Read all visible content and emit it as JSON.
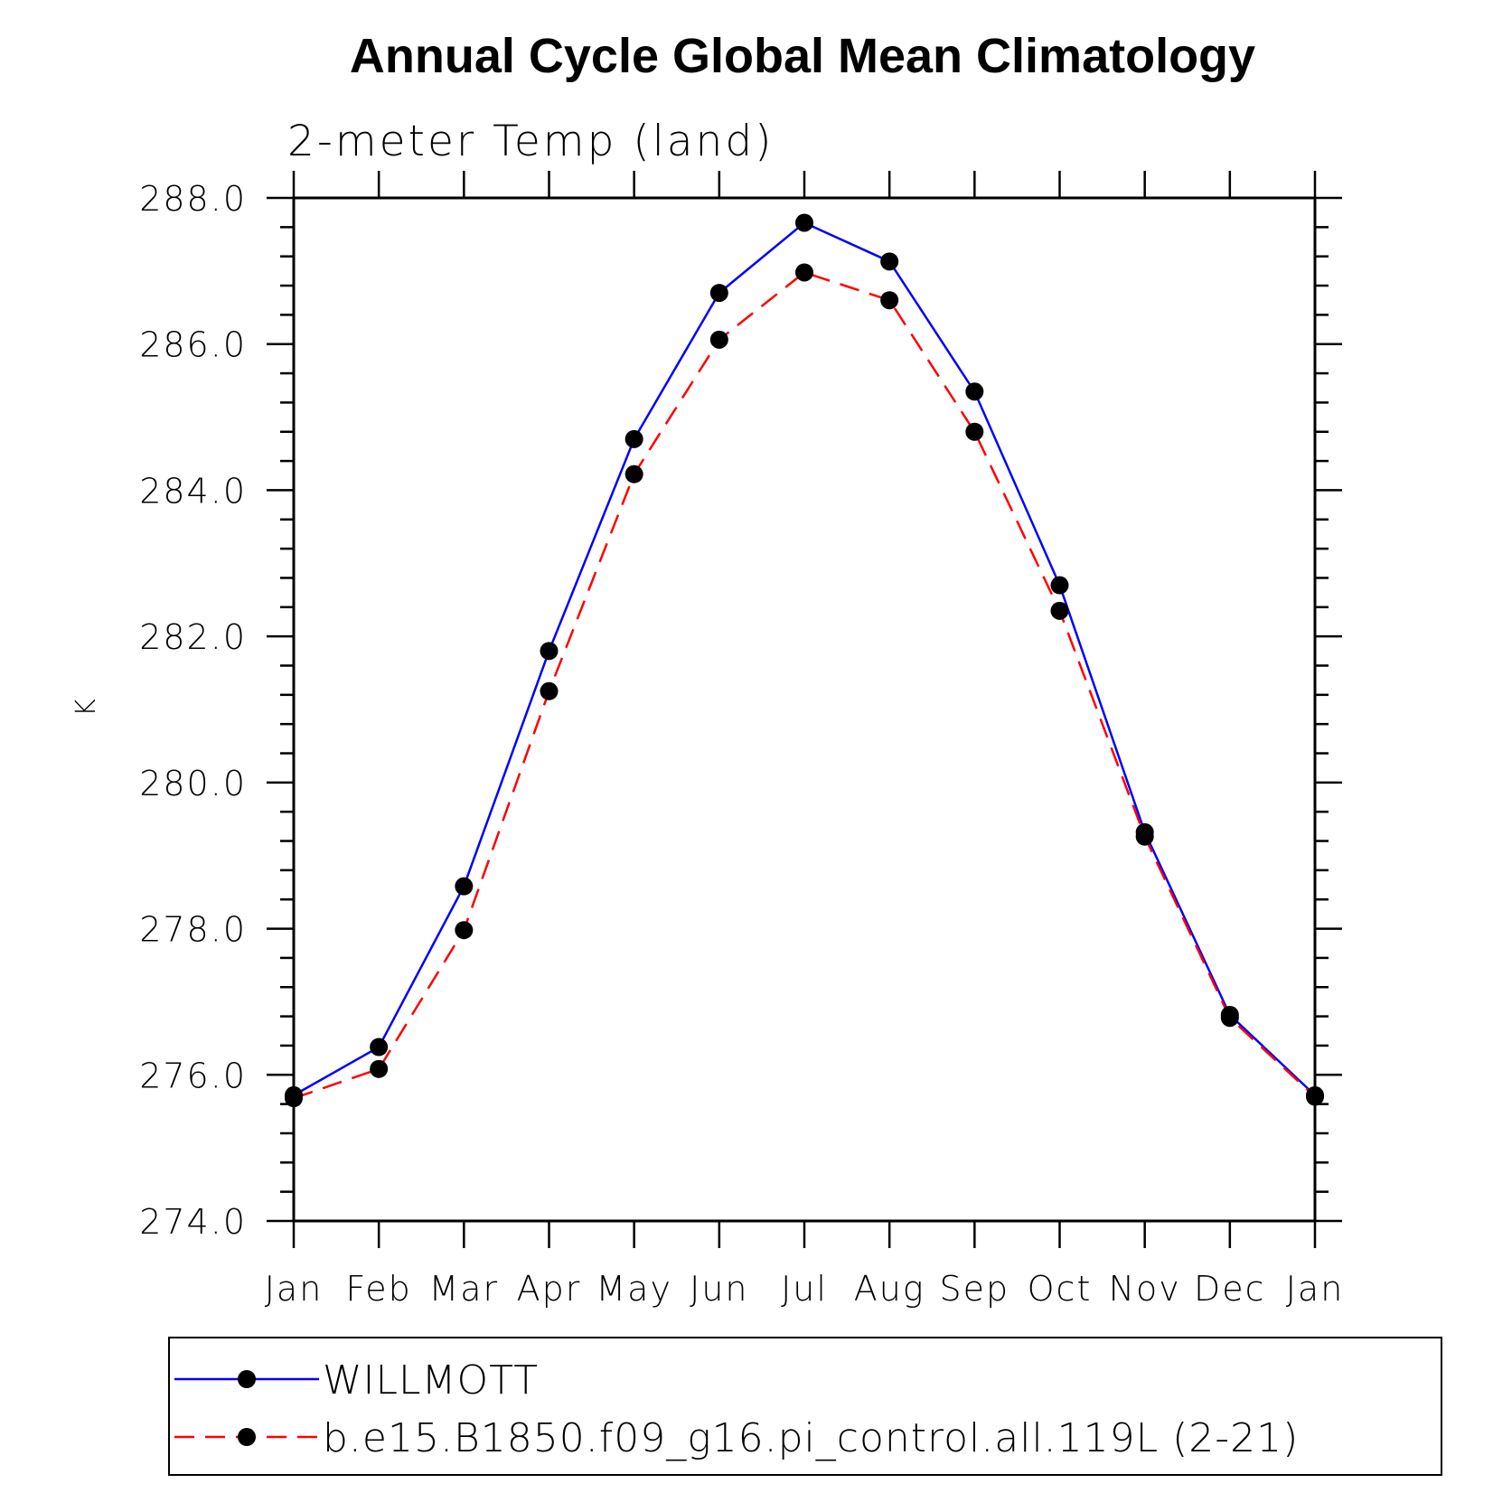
{
  "chart_data": {
    "type": "line",
    "title": "Annual Cycle Global Mean Climatology",
    "subtitle": "2-meter Temp (land)",
    "ylabel": "K",
    "xlabel": "",
    "categories": [
      "Jan",
      "Feb",
      "Mar",
      "Apr",
      "May",
      "Jun",
      "Jul",
      "Aug",
      "Sep",
      "Oct",
      "Nov",
      "Dec",
      "Jan"
    ],
    "ylim": [
      274.0,
      288.0
    ],
    "yticks": [
      "274.0",
      "276.0",
      "278.0",
      "280.0",
      "282.0",
      "284.0",
      "286.0",
      "288.0"
    ],
    "grid": false,
    "legend_position": "bottom",
    "series": [
      {
        "name": "WILLMOTT",
        "color": "#0000ff",
        "line_style": "solid",
        "marker": "filled-circle",
        "values": [
          275.72,
          276.38,
          278.58,
          281.8,
          284.7,
          286.7,
          287.66,
          287.13,
          285.35,
          282.7,
          279.32,
          276.82,
          275.72
        ]
      },
      {
        "name": "b.e15.B1850.f09_g16.pi_control.all.119L (2-21)",
        "color": "#ff0000",
        "line_style": "dashed",
        "marker": "filled-circle",
        "values": [
          275.68,
          276.08,
          277.98,
          281.25,
          284.22,
          286.06,
          286.98,
          286.6,
          284.8,
          282.35,
          279.26,
          276.78,
          275.7
        ]
      }
    ]
  }
}
